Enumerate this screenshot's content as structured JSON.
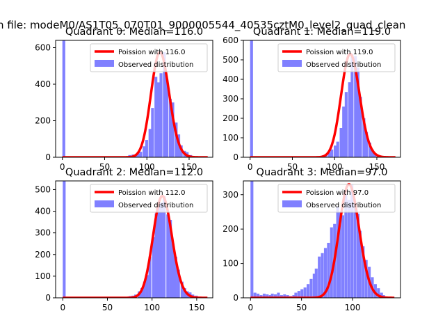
{
  "figure": {
    "title": "n file: modeM0/AS1T05_070T01_9000005544_40535cztM0_level2_quad_clean",
    "colors": {
      "poisson": "#ff0000",
      "observed": "#8080ff",
      "axes": "#000000"
    }
  },
  "chart_data": [
    {
      "type": "bar",
      "title": "Quadrant 0: Median=116.0",
      "xlim": [
        -8,
        178
      ],
      "ylim": [
        0,
        640
      ],
      "xticks": [
        0,
        50,
        100,
        150
      ],
      "yticks": [
        0,
        200,
        400,
        600
      ],
      "legend": {
        "position": "top-right",
        "poisson_label": "Poission with 116.0",
        "observed_label": "Observed distribution"
      },
      "median": 116.0,
      "bin_width": 3.4,
      "hist": {
        "x": [
          0,
          74,
          78,
          82,
          85,
          88,
          91,
          95,
          98,
          102,
          105,
          109,
          112,
          115,
          119,
          122,
          126,
          129,
          133,
          136,
          139,
          143,
          146,
          150,
          153,
          156,
          160,
          163
        ],
        "y": [
          640,
          5,
          12,
          15,
          12,
          20,
          30,
          60,
          95,
          155,
          270,
          440,
          410,
          460,
          575,
          430,
          320,
          300,
          190,
          125,
          65,
          35,
          28,
          12,
          5,
          4,
          3,
          2
        ]
      }
    },
    {
      "type": "bar",
      "title": "Quadrant 1: Median=119.0",
      "xlim": [
        -8,
        178
      ],
      "ylim": [
        0,
        600
      ],
      "xticks": [
        0,
        50,
        100,
        150
      ],
      "yticks": [
        0,
        100,
        200,
        300,
        400,
        500,
        600
      ],
      "legend": {
        "position": "top-right",
        "poisson_label": "Poission with 119.0",
        "observed_label": "Observed distribution"
      },
      "median": 119.0,
      "bin_width": 3.4,
      "hist": {
        "x": [
          0,
          78,
          82,
          85,
          88,
          92,
          95,
          99,
          102,
          106,
          109,
          112,
          116,
          119,
          123,
          126,
          129,
          133,
          136,
          140,
          143,
          146,
          150,
          153,
          157
        ],
        "y": [
          600,
          3,
          6,
          10,
          15,
          25,
          40,
          60,
          80,
          150,
          260,
          335,
          385,
          530,
          520,
          460,
          310,
          200,
          130,
          75,
          40,
          20,
          10,
          5,
          3
        ]
      }
    },
    {
      "type": "bar",
      "title": "Quadrant 2: Median=112.0",
      "xlim": [
        -8,
        168
      ],
      "ylim": [
        0,
        540
      ],
      "xticks": [
        0,
        50,
        100,
        150
      ],
      "yticks": [
        0,
        100,
        200,
        300,
        400,
        500
      ],
      "legend": {
        "position": "top-right",
        "poisson_label": "Poission with 112.0",
        "observed_label": "Observed distribution"
      },
      "median": 112.0,
      "bin_width": 3.2,
      "hist": {
        "x": [
          0,
          74,
          77,
          80,
          84,
          87,
          90,
          93,
          96,
          100,
          103,
          106,
          109,
          112,
          116,
          119,
          122,
          125,
          128,
          132,
          135,
          138,
          141,
          144,
          148,
          151,
          154
        ],
        "y": [
          540,
          8,
          10,
          15,
          30,
          45,
          75,
          105,
          190,
          280,
          390,
          430,
          440,
          470,
          385,
          360,
          250,
          190,
          130,
          75,
          45,
          30,
          25,
          15,
          10,
          5,
          3
        ]
      }
    },
    {
      "type": "bar",
      "title": "Quadrant 3: Median=97.0",
      "xlim": [
        -7,
        147
      ],
      "ylim": [
        0,
        340
      ],
      "xticks": [
        0,
        50,
        100
      ],
      "yticks": [
        0,
        100,
        200,
        300
      ],
      "legend": {
        "position": "top-right",
        "poisson_label": "Poission with 97.0",
        "observed_label": "Observed distribution"
      },
      "median": 97.0,
      "bin_width": 2.8,
      "hist": {
        "x": [
          0,
          3,
          6,
          9,
          12,
          15,
          18,
          20,
          23,
          26,
          29,
          32,
          35,
          38,
          41,
          43,
          46,
          49,
          52,
          55,
          58,
          61,
          63,
          66,
          69,
          72,
          75,
          78,
          81,
          84,
          86,
          89,
          92,
          95,
          98,
          101,
          104,
          106,
          109,
          112,
          115,
          118,
          121,
          124,
          127,
          129
        ],
        "y": [
          340,
          15,
          12,
          8,
          12,
          10,
          8,
          12,
          10,
          15,
          8,
          10,
          8,
          5,
          8,
          15,
          20,
          25,
          30,
          40,
          55,
          70,
          85,
          120,
          130,
          145,
          160,
          205,
          215,
          265,
          250,
          240,
          300,
          285,
          330,
          280,
          245,
          195,
          150,
          110,
          90,
          60,
          40,
          28,
          15,
          8
        ]
      }
    }
  ]
}
